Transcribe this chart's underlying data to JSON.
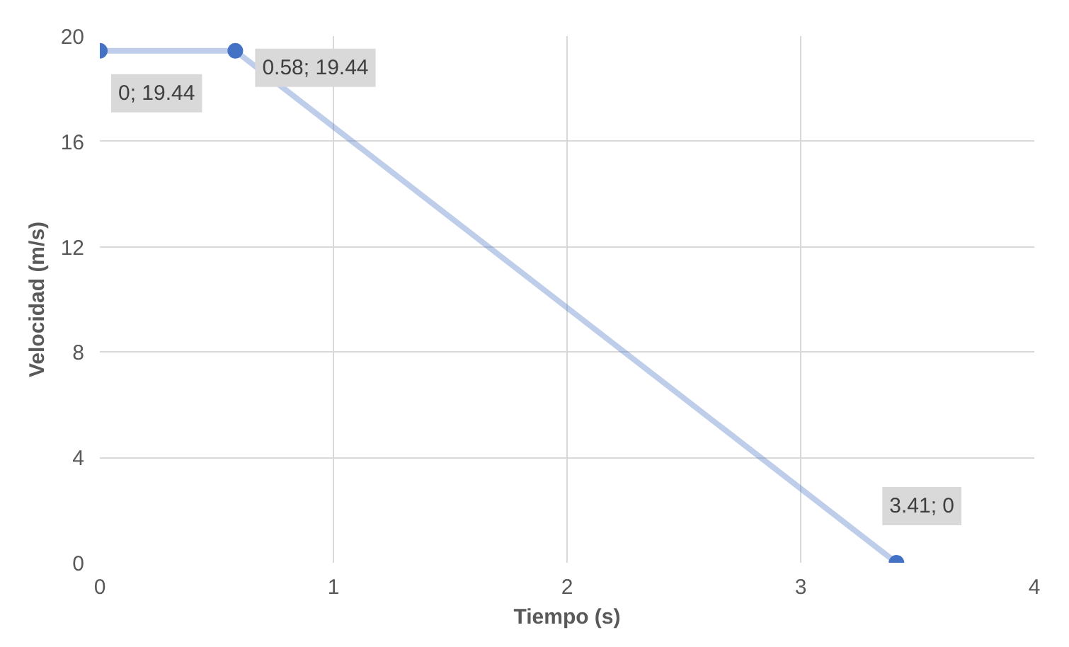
{
  "chart_data": {
    "type": "line",
    "xlabel": "Tiempo (s)",
    "ylabel": "Velocidad (m/s)",
    "x": [
      0,
      0.58,
      3.41
    ],
    "series": [
      {
        "color": "#4472c4",
        "values": [
          19.44,
          19.44,
          0
        ],
        "value_labels": [
          "0; 19.44",
          "0.58; 19.44",
          "3.41; 0"
        ]
      }
    ],
    "xlim": [
      0,
      4
    ],
    "ylim": [
      0,
      20
    ],
    "xticks": [
      0,
      1,
      2,
      3,
      4
    ],
    "yticks": [
      0,
      4,
      8,
      12,
      16,
      20
    ],
    "grid": true,
    "marker": "circle",
    "line_style": "solid"
  }
}
